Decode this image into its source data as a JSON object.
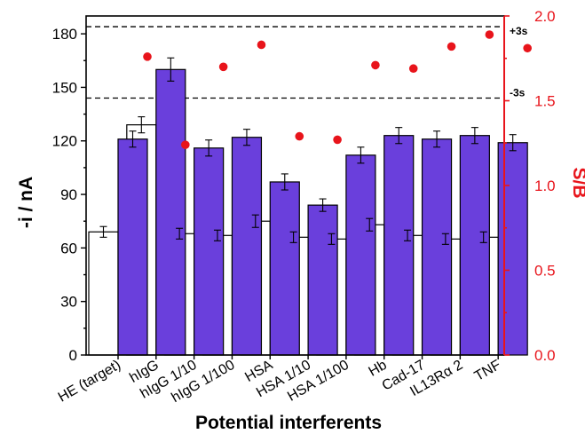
{
  "chart_data": {
    "type": "bar",
    "xlabel": "Potential interferents",
    "ylabel": "-i / nA",
    "y2label": "S/B",
    "ylim": [
      0,
      190
    ],
    "y2lim": [
      0,
      2.0
    ],
    "yticks": [
      0,
      30,
      60,
      90,
      120,
      150,
      180
    ],
    "y2ticks": [
      "0.0",
      "0.5",
      "1.0",
      "1.5",
      "2.0"
    ],
    "categories": [
      "HE (target)",
      "hIgG",
      "hIgG 1/10",
      "hIgG 1/100",
      "HSA",
      "HSA 1/10",
      "HSA 1/100",
      "Hb",
      "Cad-17",
      "IL13Rα 2",
      "TNF"
    ],
    "series": [
      {
        "color": "#ffffff",
        "axis": "left",
        "values": [
          69,
          129,
          68,
          67,
          75,
          66,
          65,
          73,
          67,
          65,
          66
        ],
        "errors": [
          3,
          4.5,
          3,
          3,
          3.5,
          3,
          3,
          3.5,
          3,
          3,
          3
        ]
      },
      {
        "color": "#6a3fdc",
        "axis": "left",
        "values": [
          121,
          160,
          116,
          122,
          97,
          84,
          112,
          123,
          121,
          123,
          119
        ],
        "errors": [
          4.5,
          6.5,
          4.5,
          4.5,
          4.5,
          3.5,
          4.5,
          4.5,
          4.5,
          4.5,
          4.5
        ]
      },
      {
        "type": "scatter",
        "color": "#e8141b",
        "axis": "right",
        "values": [
          1.76,
          1.24,
          1.7,
          1.83,
          1.29,
          1.27,
          1.71,
          1.69,
          1.82,
          1.89,
          1.81
        ]
      }
    ],
    "reference_lines": [
      {
        "label": "+3s",
        "value": 184,
        "axis": "left"
      },
      {
        "label": "-3s",
        "value": 144,
        "axis": "left"
      }
    ]
  }
}
